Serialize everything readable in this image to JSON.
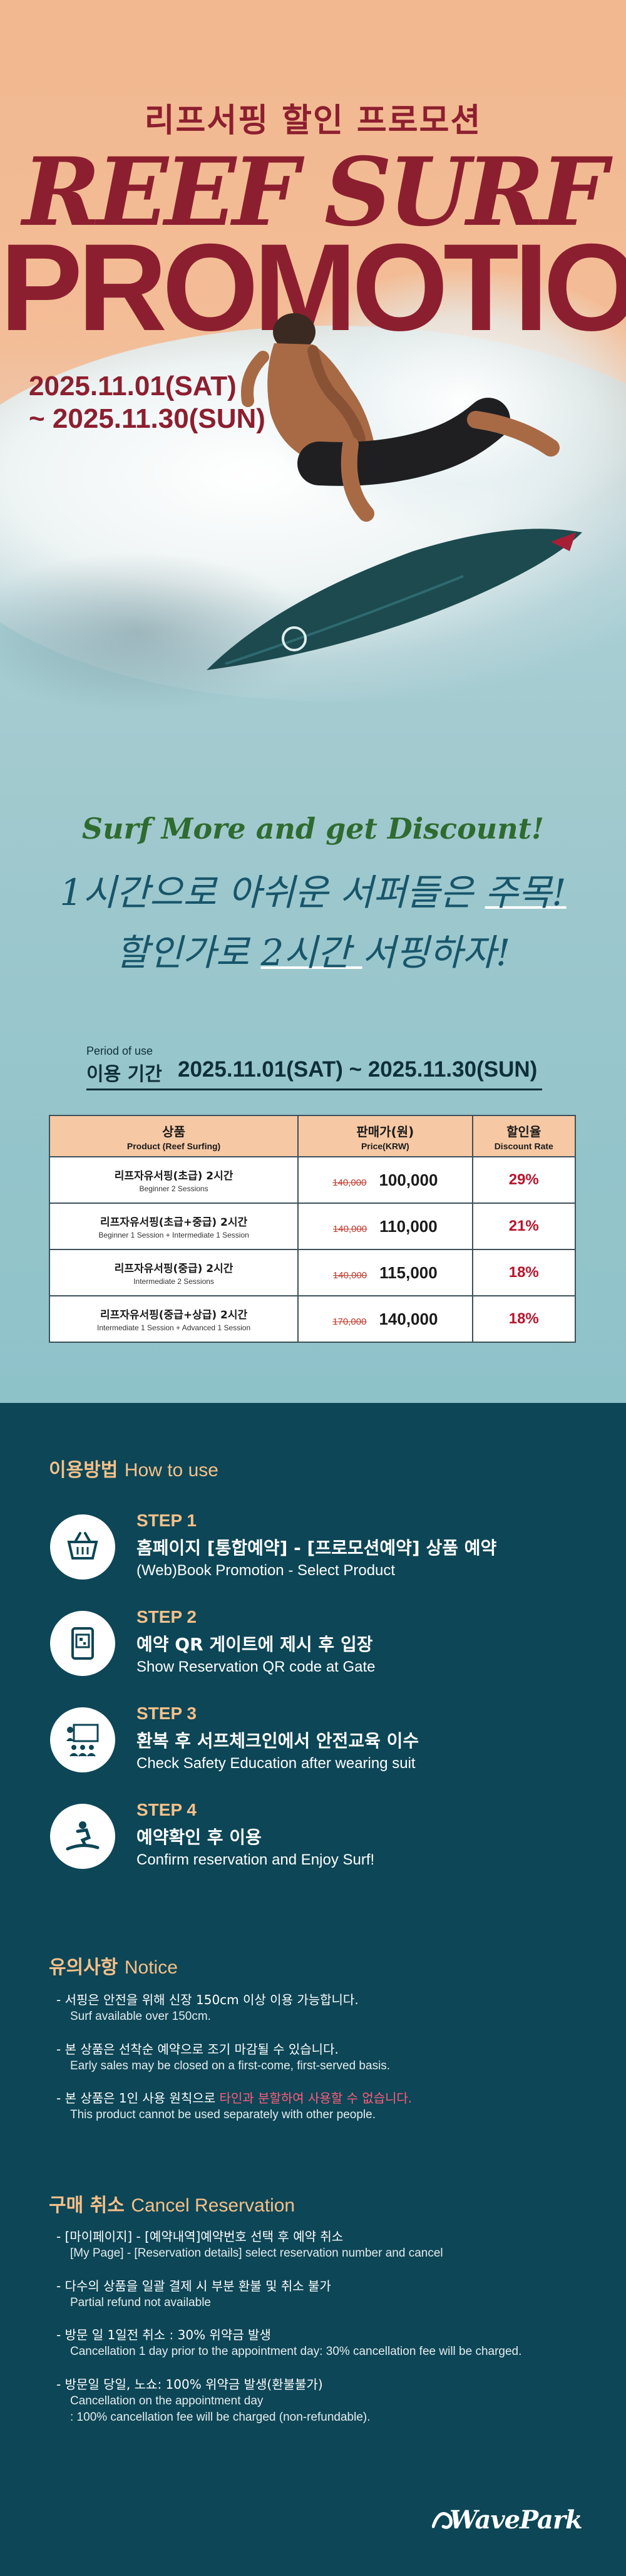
{
  "hero": {
    "korean_title": "리프서핑 할인 프로모션",
    "title_line1": "REEF SURF",
    "title_line2": "PROMOTION",
    "date_start": "2025.11.01(SAT)",
    "date_end": "~ 2025.11.30(SUN)",
    "slogan_en": "Surf More and get Discount!",
    "slogan_ko_1_pre": "1시간으로 아쉬운 서퍼들은 ",
    "slogan_ko_1_hl": "주목!",
    "slogan_ko_2_pre": "할인가로 ",
    "slogan_ko_2_hl": "2시간 ",
    "slogan_ko_2_post": "서핑하자!"
  },
  "period": {
    "label_en": "Period of use",
    "label_ko": "이용 기간",
    "value": "2025.11.01(SAT) ~ 2025.11.30(SUN)"
  },
  "price_table": {
    "headers": [
      {
        "main": "상품",
        "sub": "Product (Reef Surfing)"
      },
      {
        "main": "판매가(원)",
        "sub": "Price(KRW)"
      },
      {
        "main": "할인율",
        "sub": "Discount Rate"
      }
    ],
    "rows": [
      {
        "name": "리프자유서핑(초급) 2시간",
        "sub": "Beginner 2 Sessions",
        "original": "140,000",
        "price": "100,000",
        "rate": "29%"
      },
      {
        "name": "리프자유서핑(초급+중급) 2시간",
        "sub": "Beginner 1 Session + Intermediate 1 Session",
        "original": "140,000",
        "price": "110,000",
        "rate": "21%"
      },
      {
        "name": "리프자유서핑(중급) 2시간",
        "sub": "Intermediate 2 Sessions",
        "original": "140,000",
        "price": "115,000",
        "rate": "18%"
      },
      {
        "name": "리프자유서핑(중급+상급) 2시간",
        "sub": "Intermediate 1 Session + Advanced 1 Session",
        "original": "170,000",
        "price": "140,000",
        "rate": "18%"
      }
    ]
  },
  "how_to_use": {
    "title_ko": "이용방법",
    "title_en": "How to use",
    "steps": [
      {
        "num": "STEP 1",
        "ko": "홈페이지 [통합예약] - [프로모션예약] 상품 예약",
        "en": "(Web)Book Promotion - Select Product",
        "icon": "basket-icon"
      },
      {
        "num": "STEP 2",
        "ko": "예약 QR 게이트에 제시 후 입장",
        "en": "Show Reservation QR code at Gate",
        "icon": "qr-code-icon"
      },
      {
        "num": "STEP 3",
        "ko": "환복 후 서프체크인에서 안전교육 이수",
        "en": "Check Safety Education after wearing suit",
        "icon": "safety-education-icon"
      },
      {
        "num": "STEP 4",
        "ko": "예약확인 후 이용",
        "en": "Confirm reservation and Enjoy Surf!",
        "icon": "surfer-icon"
      }
    ]
  },
  "notice": {
    "title_ko": "유의사항",
    "title_en": "Notice",
    "items": [
      {
        "ko": "- 서핑은 안전을 위해 신장 150cm 이상 이용 가능합니다.",
        "en": "Surf available over 150cm."
      },
      {
        "ko": "- 본 상품은 선착순 예약으로 조기 마감될 수 있습니다.",
        "en": "Early sales may be closed on a first-come, first-served basis."
      },
      {
        "ko_pre": "- 본 상품은 1인 사용 원칙으로 ",
        "ko_red": "타인과 분할하여 사용할 수 없습니다.",
        "en": "This product cannot be used separately with other people."
      }
    ]
  },
  "cancel": {
    "title_ko": "구매 취소",
    "title_en": "Cancel Reservation",
    "items": [
      {
        "ko": "- [마이페이지] - [예약내역]예약번호 선택 후 예약 취소",
        "en": "[My Page] - [Reservation details] select reservation number and cancel"
      },
      {
        "ko": "- 다수의 상품을 일괄 결제 시 부분 환불 및 취소 불가",
        "en": "Partial refund not available"
      },
      {
        "ko": "- 방문 일 1일전 취소 : 30% 위약금 발생",
        "en": "Cancellation 1 day prior to the appointment day: 30% cancellation fee will be charged."
      },
      {
        "ko": "- 방문일 당일, 노쇼: 100% 위약금 발생(환불불가)",
        "en": "Cancellation on the appointment day",
        "en2": ": 100% cancellation fee will be charged (non-refundable)."
      }
    ]
  },
  "logo": {
    "text": "WavePark"
  }
}
